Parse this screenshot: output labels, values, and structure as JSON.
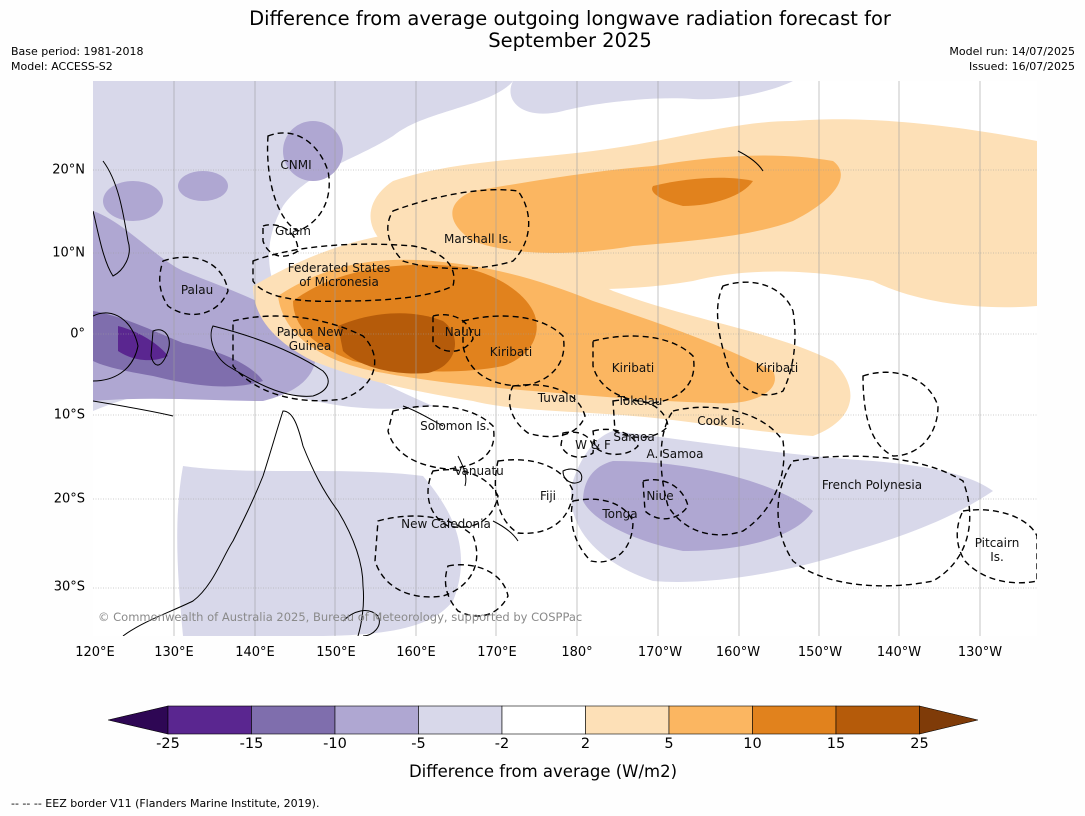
{
  "title_line1": "Difference from average outgoing longwave radiation forecast for",
  "title_line2": "September 2025",
  "meta_left": {
    "base_period": "Base period: 1981-2018",
    "model": "Model: ACCESS-S2"
  },
  "meta_right": {
    "model_run": "Model run: 14/07/2025",
    "issued": "Issued: 16/07/2025"
  },
  "map": {
    "lat_labels": [
      "20°N",
      "10°N",
      "0°",
      "10°S",
      "20°S",
      "30°S"
    ],
    "lon_labels": [
      "120°E",
      "130°E",
      "140°E",
      "150°E",
      "160°E",
      "170°E",
      "180°",
      "170°W",
      "160°W",
      "150°W",
      "140°W",
      "130°W"
    ],
    "region_labels": [
      {
        "name": "CNMI"
      },
      {
        "name": "Guam"
      },
      {
        "name": "Marshall Is."
      },
      {
        "name": "Federated States\nof Micronesia"
      },
      {
        "name": "Palau"
      },
      {
        "name": "Papua New\nGuinea"
      },
      {
        "name": "Nauru"
      },
      {
        "name": "Kiribati"
      },
      {
        "name": "Kiribati"
      },
      {
        "name": "Kiribati"
      },
      {
        "name": "Tuvalu"
      },
      {
        "name": "Tokelau"
      },
      {
        "name": "Cook Is."
      },
      {
        "name": "Solomon Is."
      },
      {
        "name": "Samoa"
      },
      {
        "name": "W & F"
      },
      {
        "name": "A. Samoa"
      },
      {
        "name": "Vanuatu"
      },
      {
        "name": "Fiji"
      },
      {
        "name": "Niue"
      },
      {
        "name": "Tonga"
      },
      {
        "name": "French Polynesia"
      },
      {
        "name": "New Caledonia"
      },
      {
        "name": "Pitcairn\nIs."
      }
    ],
    "copyright": "© Commonwealth of Australia 2025, Bureau of Meteorology, supported by COSPPac"
  },
  "legend": {
    "title": "Difference from average (W/m2)",
    "ticks": [
      "-25",
      "-15",
      "-10",
      "-5",
      "-2",
      "2",
      "5",
      "10",
      "15",
      "25"
    ],
    "colors": [
      "#5a2690",
      "#7f6ead",
      "#afa7d2",
      "#d8d8ea",
      "#ffffff",
      "#fde0b7",
      "#fbb661",
      "#e1821d",
      "#b55b0a"
    ],
    "extend_low_color": "#2e0754",
    "extend_high_color": "#7f3b08"
  },
  "footnote": "-- -- -- EEZ border V11 (Flanders Marine Institute, 2019)."
}
